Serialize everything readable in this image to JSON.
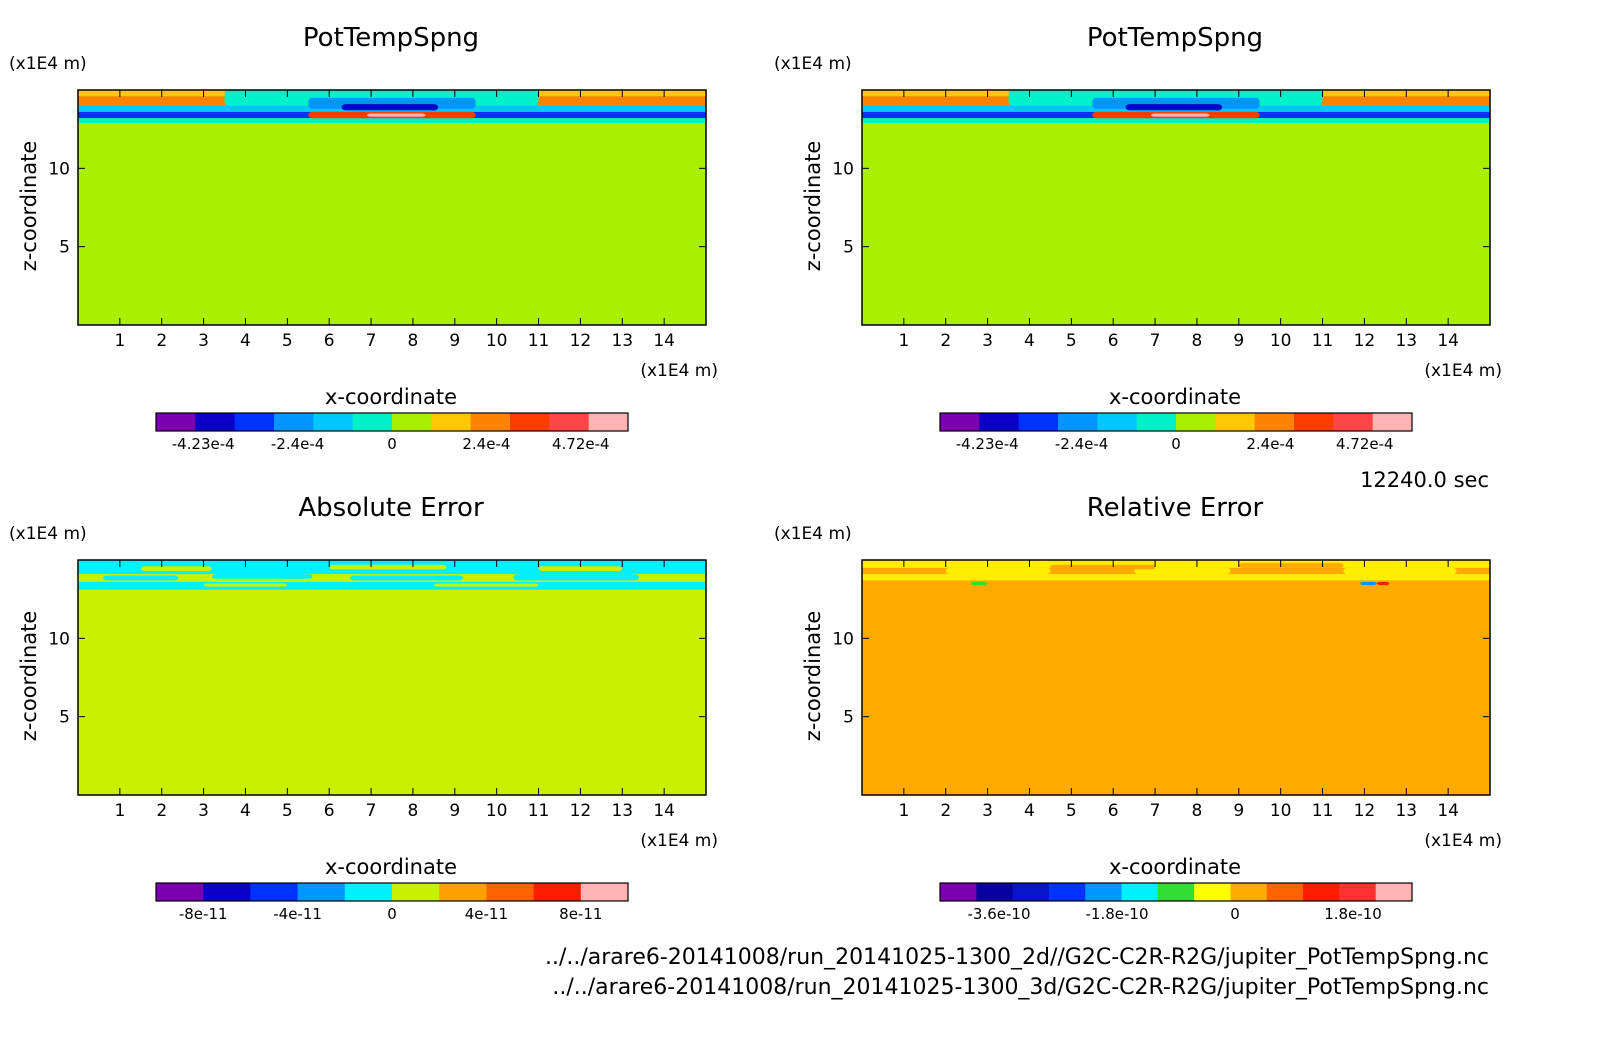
{
  "time_label": "12240.0 sec",
  "files": [
    "../../arare6-20141008/run_20141025-1300_2d//G2C-C2R-R2G/jupiter_PotTempSpng.nc",
    "../../arare6-20141008/run_20141025-1300_3d/G2C-C2R-R2G/jupiter_PotTempSpng.nc"
  ],
  "chart_data": [
    {
      "type": "heatmap",
      "title": "PotTempSpng",
      "xlabel": "x-coordinate",
      "ylabel": "z-coordinate",
      "x_unit": "(x1E4 m)",
      "y_unit": "(x1E4 m)",
      "xlim": [
        0,
        15
      ],
      "ylim": [
        0,
        15
      ],
      "x_ticks": [
        1,
        2,
        3,
        4,
        5,
        6,
        7,
        8,
        9,
        10,
        11,
        12,
        13,
        14
      ],
      "y_ticks": [
        5,
        10
      ],
      "background_color": "#a9f000",
      "colorbar": {
        "colors": [
          "#7b00b0",
          "#0a00c8",
          "#0032ff",
          "#0096ff",
          "#00c8ff",
          "#00f0c8",
          "#a9f000",
          "#ffc800",
          "#ff8200",
          "#ff3c00",
          "#ff4646",
          "#ffb4b4"
        ],
        "tick_labels": [
          "-4.23e-4",
          "-2.4e-4",
          "0",
          "2.4e-4",
          "4.72e-4"
        ]
      },
      "bands": [
        {
          "z_top": 15.0,
          "z_bot": 14.6,
          "color": "#ffc800"
        },
        {
          "z_top": 14.6,
          "z_bot": 14.0,
          "color": "#ff8200"
        },
        {
          "z_top": 14.0,
          "z_bot": 13.6,
          "color": "#00c8ff"
        },
        {
          "z_top": 13.6,
          "z_bot": 13.2,
          "color": "#0032ff"
        },
        {
          "z_top": 13.2,
          "z_bot": 12.9,
          "color": "#00f0c8"
        }
      ],
      "features": [
        {
          "x0": 3.5,
          "x1": 11.0,
          "z_top": 15.0,
          "z_bot": 14.0,
          "color": "#00f0c8"
        },
        {
          "x0": 5.5,
          "x1": 9.5,
          "z_top": 14.5,
          "z_bot": 13.8,
          "color": "#0096ff"
        },
        {
          "x0": 6.3,
          "x1": 8.6,
          "z_top": 14.1,
          "z_bot": 13.7,
          "color": "#0a00c8"
        },
        {
          "x0": 5.5,
          "x1": 9.5,
          "z_top": 13.6,
          "z_bot": 13.2,
          "color": "#ff3c00"
        },
        {
          "x0": 6.9,
          "x1": 8.3,
          "z_top": 13.5,
          "z_bot": 13.3,
          "color": "#ffb4b4"
        }
      ]
    },
    {
      "type": "heatmap",
      "title": "PotTempSpng",
      "xlabel": "x-coordinate",
      "ylabel": "z-coordinate",
      "x_unit": "(x1E4 m)",
      "y_unit": "(x1E4 m)",
      "xlim": [
        0,
        15
      ],
      "ylim": [
        0,
        15
      ],
      "x_ticks": [
        1,
        2,
        3,
        4,
        5,
        6,
        7,
        8,
        9,
        10,
        11,
        12,
        13,
        14
      ],
      "y_ticks": [
        5,
        10
      ],
      "background_color": "#a9f000",
      "colorbar": {
        "colors": [
          "#7b00b0",
          "#0a00c8",
          "#0032ff",
          "#0096ff",
          "#00c8ff",
          "#00f0c8",
          "#a9f000",
          "#ffc800",
          "#ff8200",
          "#ff3c00",
          "#ff4646",
          "#ffb4b4"
        ],
        "tick_labels": [
          "-4.23e-4",
          "-2.4e-4",
          "0",
          "2.4e-4",
          "4.72e-4"
        ]
      },
      "bands": [
        {
          "z_top": 15.0,
          "z_bot": 14.6,
          "color": "#ffc800"
        },
        {
          "z_top": 14.6,
          "z_bot": 14.0,
          "color": "#ff8200"
        },
        {
          "z_top": 14.0,
          "z_bot": 13.6,
          "color": "#00c8ff"
        },
        {
          "z_top": 13.6,
          "z_bot": 13.2,
          "color": "#0032ff"
        },
        {
          "z_top": 13.2,
          "z_bot": 12.9,
          "color": "#00f0c8"
        }
      ],
      "features": [
        {
          "x0": 3.5,
          "x1": 11.0,
          "z_top": 15.0,
          "z_bot": 14.0,
          "color": "#00f0c8"
        },
        {
          "x0": 5.5,
          "x1": 9.5,
          "z_top": 14.5,
          "z_bot": 13.8,
          "color": "#0096ff"
        },
        {
          "x0": 6.3,
          "x1": 8.6,
          "z_top": 14.1,
          "z_bot": 13.7,
          "color": "#0a00c8"
        },
        {
          "x0": 5.5,
          "x1": 9.5,
          "z_top": 13.6,
          "z_bot": 13.2,
          "color": "#ff3c00"
        },
        {
          "x0": 6.9,
          "x1": 8.3,
          "z_top": 13.5,
          "z_bot": 13.3,
          "color": "#ffb4b4"
        }
      ]
    },
    {
      "type": "heatmap",
      "title": "Absolute Error",
      "xlabel": "x-coordinate",
      "ylabel": "z-coordinate",
      "x_unit": "(x1E4 m)",
      "y_unit": "(x1E4 m)",
      "xlim": [
        0,
        15
      ],
      "ylim": [
        0,
        15
      ],
      "x_ticks": [
        1,
        2,
        3,
        4,
        5,
        6,
        7,
        8,
        9,
        10,
        11,
        12,
        13,
        14
      ],
      "y_ticks": [
        5,
        10
      ],
      "background_color": "#c8f000",
      "colorbar": {
        "colors": [
          "#7b00b0",
          "#0a00c8",
          "#0032ff",
          "#0096ff",
          "#00f0ff",
          "#c8f000",
          "#ffa000",
          "#ff6400",
          "#ff1e00",
          "#ffb4b4"
        ],
        "tick_labels": [
          "-8e-11",
          "-4e-11",
          "0",
          "4e-11",
          "8e-11"
        ]
      },
      "bands": [
        {
          "z_top": 15.0,
          "z_bot": 14.1,
          "color": "#00f0ff"
        },
        {
          "z_top": 13.6,
          "z_bot": 13.1,
          "color": "#00f0ff"
        }
      ],
      "features": [
        {
          "x0": 0.6,
          "x1": 2.4,
          "z_top": 14.0,
          "z_bot": 13.7,
          "color": "#00f0ff"
        },
        {
          "x0": 3.2,
          "x1": 5.6,
          "z_top": 14.1,
          "z_bot": 13.8,
          "color": "#00f0ff"
        },
        {
          "x0": 6.5,
          "x1": 9.2,
          "z_top": 14.0,
          "z_bot": 13.7,
          "color": "#00f0ff"
        },
        {
          "x0": 10.4,
          "x1": 13.4,
          "z_top": 14.1,
          "z_bot": 13.7,
          "color": "#00f0ff"
        },
        {
          "x0": 1.5,
          "x1": 3.2,
          "z_top": 14.6,
          "z_bot": 14.3,
          "color": "#c8f000"
        },
        {
          "x0": 6.0,
          "x1": 8.8,
          "z_top": 14.7,
          "z_bot": 14.4,
          "color": "#c8f000"
        },
        {
          "x0": 11.0,
          "x1": 13.0,
          "z_top": 14.6,
          "z_bot": 14.3,
          "color": "#c8f000"
        },
        {
          "x0": 3.0,
          "x1": 5.0,
          "z_top": 13.5,
          "z_bot": 13.3,
          "color": "#c8f000"
        },
        {
          "x0": 8.5,
          "x1": 11.0,
          "z_top": 13.5,
          "z_bot": 13.3,
          "color": "#c8f000"
        }
      ]
    },
    {
      "type": "heatmap",
      "title": "Relative Error",
      "xlabel": "x-coordinate",
      "ylabel": "z-coordinate",
      "x_unit": "(x1E4 m)",
      "y_unit": "(x1E4 m)",
      "xlim": [
        0,
        15
      ],
      "ylim": [
        0,
        15
      ],
      "x_ticks": [
        1,
        2,
        3,
        4,
        5,
        6,
        7,
        8,
        9,
        10,
        11,
        12,
        13,
        14
      ],
      "y_ticks": [
        5,
        10
      ],
      "background_color": "#ffaa00",
      "colorbar": {
        "colors": [
          "#7b00b0",
          "#0a00a0",
          "#0a14c8",
          "#0032ff",
          "#0096ff",
          "#00f0ff",
          "#32dc32",
          "#ffff00",
          "#ffaa00",
          "#ff6400",
          "#ff1e00",
          "#ff3232",
          "#ffb4b4"
        ],
        "tick_labels": [
          "-3.6e-10",
          "-1.8e-10",
          "0",
          "1.8e-10"
        ]
      },
      "bands": [
        {
          "z_top": 15.0,
          "z_bot": 14.5,
          "color": "#ffee00"
        },
        {
          "z_top": 14.1,
          "z_bot": 13.7,
          "color": "#ffee00"
        }
      ],
      "features": [
        {
          "x0": 2.0,
          "x1": 4.5,
          "z_top": 14.5,
          "z_bot": 14.1,
          "color": "#ffee00"
        },
        {
          "x0": 6.5,
          "x1": 8.8,
          "z_top": 14.5,
          "z_bot": 14.1,
          "color": "#ffee00"
        },
        {
          "x0": 11.5,
          "x1": 14.2,
          "z_top": 14.5,
          "z_bot": 14.1,
          "color": "#ffee00"
        },
        {
          "x0": 4.5,
          "x1": 7.0,
          "z_top": 14.7,
          "z_bot": 14.4,
          "color": "#ffaa00"
        },
        {
          "x0": 9.0,
          "x1": 11.5,
          "z_top": 14.8,
          "z_bot": 14.5,
          "color": "#ffaa00"
        },
        {
          "x0": 2.6,
          "x1": 3.0,
          "z_top": 13.6,
          "z_bot": 13.4,
          "color": "#32dc32"
        },
        {
          "x0": 11.9,
          "x1": 12.3,
          "z_top": 13.6,
          "z_bot": 13.4,
          "color": "#0096ff"
        },
        {
          "x0": 12.3,
          "x1": 12.6,
          "z_top": 13.6,
          "z_bot": 13.4,
          "color": "#ff1e00"
        }
      ]
    }
  ]
}
